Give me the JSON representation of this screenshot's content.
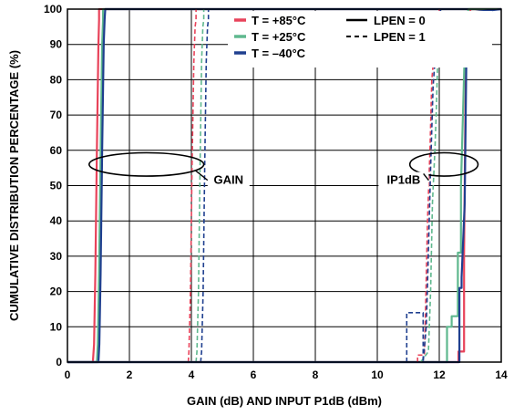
{
  "chart_data": {
    "type": "line",
    "xlabel": "GAIN (dB) AND INPUT P1dB (dBm)",
    "ylabel": "CUMULATIVE DISTRIBUTION PERCENTAGE (%)",
    "xlim": [
      0,
      14
    ],
    "ylim": [
      0,
      100
    ],
    "xticks": [
      "0",
      "2",
      "4",
      "6",
      "8",
      "10",
      "12",
      "14"
    ],
    "yticks": [
      "0",
      "10",
      "20",
      "30",
      "40",
      "50",
      "60",
      "70",
      "80",
      "90",
      "100"
    ],
    "grid": true,
    "legend_position": "top-right",
    "legend": {
      "colors": [
        {
          "label": "T = +85°C",
          "color": "#e8435a"
        },
        {
          "label": "T = +25°C",
          "color": "#5fb88e"
        },
        {
          "label": "T = –40°C",
          "color": "#1f3f8f"
        }
      ],
      "styles": [
        {
          "label": "LPEN = 0",
          "dash": "solid"
        },
        {
          "label": "LPEN = 1",
          "dash": "dashed"
        }
      ]
    },
    "annotations": [
      {
        "text": "GAIN",
        "x": 5.2,
        "y": 51,
        "ellipse": {
          "cx": 2.55,
          "cy": 56,
          "rx": 1.85,
          "ry": 3.3
        }
      },
      {
        "text": "IP1dB",
        "x": 10.85,
        "y": 51,
        "ellipse": {
          "cx": 12.15,
          "cy": 56,
          "rx": 1.1,
          "ry": 3.3
        }
      }
    ],
    "series": [
      {
        "color": "#e8435a",
        "dash": "solid",
        "x": [
          0,
          0.82,
          0.86,
          0.9,
          0.95,
          1.0,
          1.02,
          1.02,
          14
        ],
        "y": [
          0,
          0,
          5,
          25,
          60,
          90,
          97,
          100,
          100
        ]
      },
      {
        "color": "#5fb88e",
        "dash": "solid",
        "x": [
          0,
          0.95,
          0.98,
          1.02,
          1.07,
          1.12,
          1.15,
          1.15,
          14
        ],
        "y": [
          0,
          0,
          5,
          25,
          60,
          90,
          97,
          100,
          100
        ]
      },
      {
        "color": "#1f3f8f",
        "dash": "solid",
        "x": [
          0,
          1.0,
          1.03,
          1.07,
          1.12,
          1.17,
          1.2,
          1.22,
          14
        ],
        "y": [
          0,
          0,
          5,
          25,
          60,
          90,
          97,
          100,
          100
        ]
      },
      {
        "color": "#e8435a",
        "dash": "dashed",
        "x": [
          3.9,
          3.92,
          3.97,
          4.02,
          4.08,
          4.12,
          4.15,
          4.15
        ],
        "y": [
          0,
          3,
          20,
          55,
          85,
          95,
          97,
          100
        ]
      },
      {
        "color": "#5fb88e",
        "dash": "dashed",
        "x": [
          4.15,
          4.18,
          4.23,
          4.28,
          4.33,
          4.37,
          4.4,
          4.4
        ],
        "y": [
          0,
          3,
          20,
          55,
          85,
          95,
          97,
          100
        ]
      },
      {
        "color": "#1f3f8f",
        "dash": "dashed",
        "x": [
          4.3,
          4.33,
          4.38,
          4.43,
          4.48,
          4.52,
          4.55,
          4.55
        ],
        "y": [
          0,
          3,
          20,
          55,
          85,
          95,
          97,
          100
        ]
      },
      {
        "color": "#e8435a",
        "dash": "solid",
        "x": [
          0,
          12.5,
          12.62,
          12.62,
          12.8,
          12.8,
          12.84,
          12.88,
          13.0,
          13.0,
          14
        ],
        "y": [
          0,
          0,
          0,
          3,
          3,
          30,
          70,
          95,
          97,
          100,
          100
        ]
      },
      {
        "color": "#5fb88e",
        "dash": "solid",
        "x": [
          0,
          12.25,
          12.25,
          12.4,
          12.4,
          12.6,
          12.6,
          12.7,
          12.7,
          12.85,
          12.95,
          14
        ],
        "y": [
          0,
          0,
          10,
          10,
          13,
          13,
          31,
          31,
          50,
          97,
          100,
          100
        ]
      },
      {
        "color": "#1f3f8f",
        "dash": "solid",
        "x": [
          0,
          12.65,
          12.65,
          12.72,
          12.72,
          12.82,
          12.88,
          12.9,
          12.96,
          14
        ],
        "y": [
          0,
          0,
          21,
          21,
          24,
          45,
          90,
          95,
          99,
          100
        ]
      },
      {
        "color": "#e8435a",
        "dash": "dashed",
        "x": [
          11.3,
          11.3,
          11.52,
          11.55,
          11.62,
          11.7,
          11.76,
          11.8,
          11.85,
          12.0,
          12.0
        ],
        "y": [
          0,
          2,
          2,
          12,
          40,
          60,
          80,
          84,
          95,
          97,
          100
        ]
      },
      {
        "color": "#5fb88e",
        "dash": "dashed",
        "x": [
          11.4,
          11.65,
          11.72,
          11.78,
          11.86,
          11.9,
          11.98,
          12.0,
          12.05
        ],
        "y": [
          0,
          3,
          20,
          45,
          60,
          70,
          95,
          97,
          100
        ]
      },
      {
        "color": "#1f3f8f",
        "dash": "dashed",
        "x": [
          10.95,
          10.95,
          11.48,
          11.48,
          11.58,
          11.62,
          11.72,
          11.8,
          11.95,
          12.02,
          12.05
        ],
        "y": [
          0,
          14,
          14,
          0,
          10,
          22,
          55,
          78,
          96,
          99,
          100
        ]
      }
    ]
  }
}
